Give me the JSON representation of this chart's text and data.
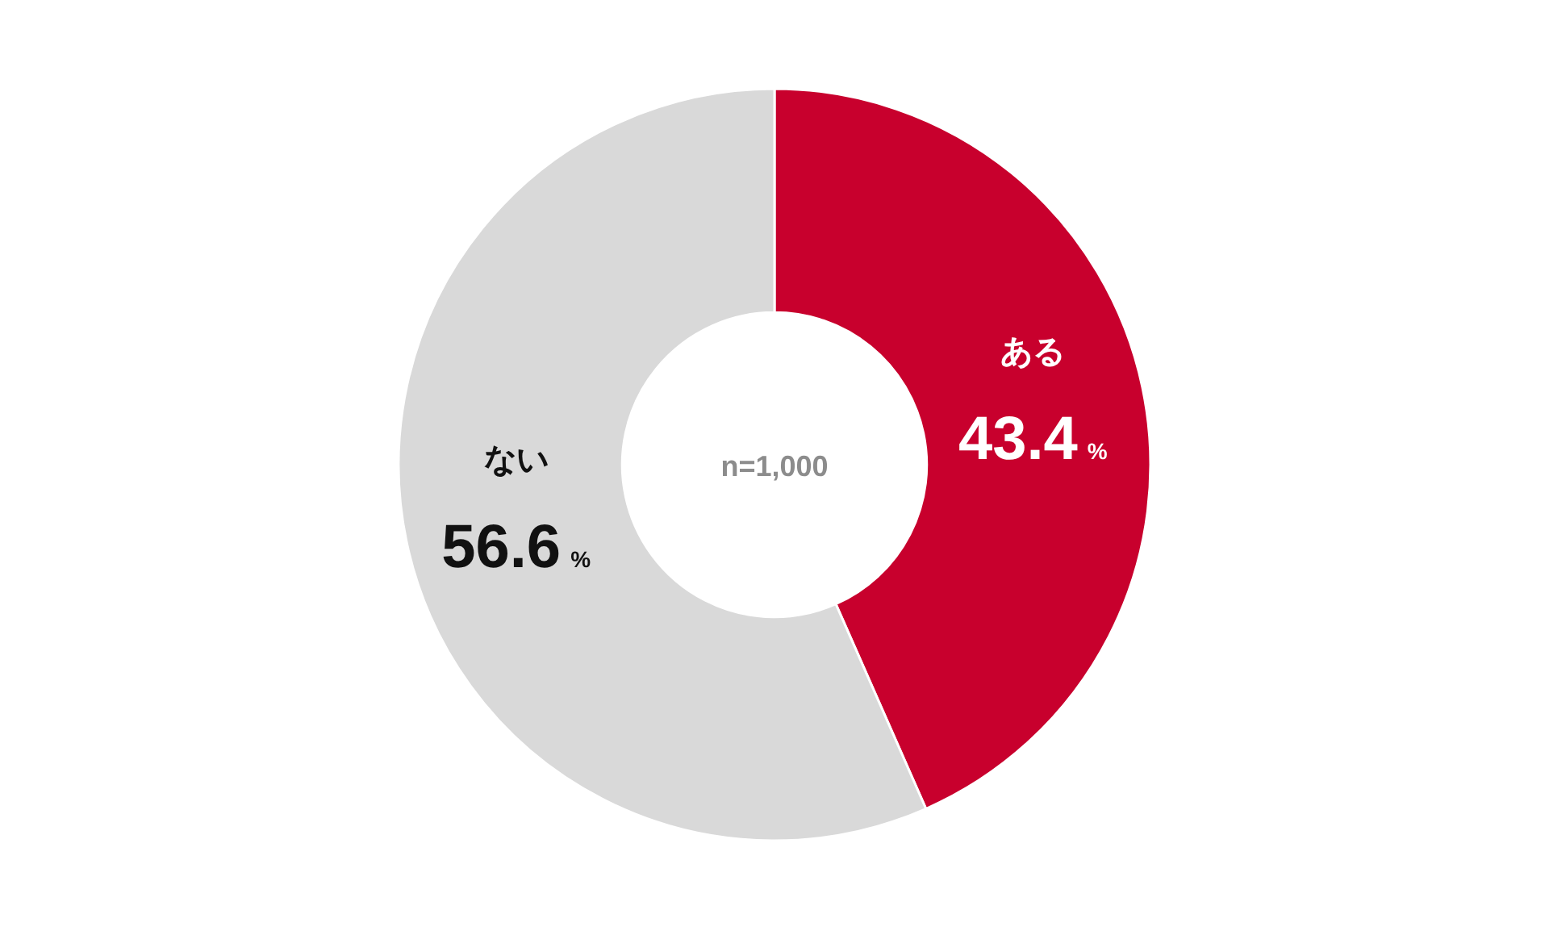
{
  "chart_data": {
    "type": "donut",
    "categories": [
      "ある",
      "ない"
    ],
    "values": [
      43.4,
      56.6
    ],
    "colors": [
      "#c8002d",
      "#d9d9d9"
    ],
    "value_labels": [
      "43.4%",
      "56.6%"
    ],
    "annotations": [
      "n=1,000"
    ]
  }
}
